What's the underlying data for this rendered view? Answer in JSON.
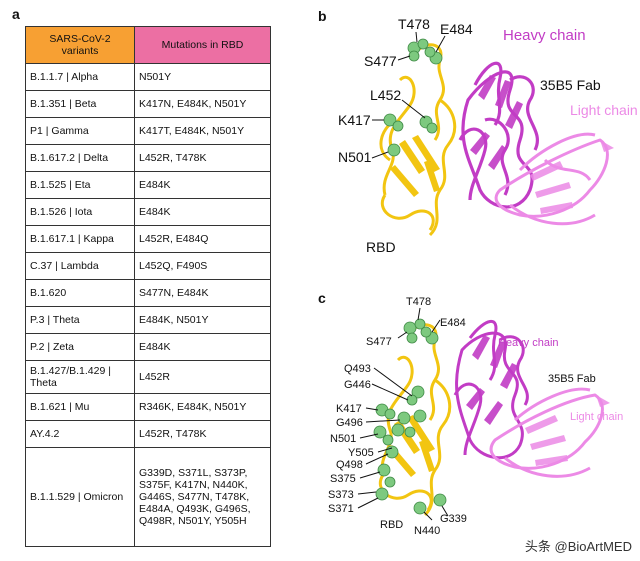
{
  "panels": {
    "a": "a",
    "b": "b",
    "c": "c"
  },
  "table": {
    "header_variant": "SARS-CoV-2 variants",
    "header_mutations": "Mutations in RBD",
    "rows": [
      {
        "variant": "B.1.1.7 | Alpha",
        "mutations": "N501Y"
      },
      {
        "variant": "B.1.351 | Beta",
        "mutations": "K417N, E484K, N501Y"
      },
      {
        "variant": "P1 | Gamma",
        "mutations": "K417T, E484K, N501Y"
      },
      {
        "variant": "B.1.617.2 | Delta",
        "mutations": "L452R, T478K"
      },
      {
        "variant": "B.1.525 | Eta",
        "mutations": "E484K"
      },
      {
        "variant": "B.1.526 | Iota",
        "mutations": "E484K"
      },
      {
        "variant": "B.1.617.1 | Kappa",
        "mutations": "L452R, E484Q"
      },
      {
        "variant": "C.37 | Lambda",
        "mutations": "L452Q, F490S"
      },
      {
        "variant": "B.1.620",
        "mutations": "S477N, E484K"
      },
      {
        "variant": "P.3 | Theta",
        "mutations": "E484K, N501Y"
      },
      {
        "variant": "P.2 | Zeta",
        "mutations": "E484K"
      },
      {
        "variant": "B.1.427/B.1.429 | Theta",
        "mutations": "L452R"
      },
      {
        "variant": "B.1.621 | Mu",
        "mutations": "R346K, E484K, N501Y"
      },
      {
        "variant": "AY.4.2",
        "mutations": "L452R, T478K"
      },
      {
        "variant": "B.1.1.529 | Omicron",
        "mutations": "G339D, S371L, S373P, S375F, K417N, N440K, G446S, S477N, T478K, E484A, Q493K, G496S, Q498R, N501Y, Y505H"
      }
    ]
  },
  "panel_b": {
    "residues": [
      "T478",
      "E484",
      "S477",
      "L452",
      "K417",
      "N501"
    ],
    "heavy_chain": "Heavy chain",
    "light_chain": "Light chain",
    "fab": "35B5 Fab",
    "rbd": "RBD"
  },
  "panel_c": {
    "residues": [
      "T478",
      "E484",
      "S477",
      "Q493",
      "G446",
      "K417",
      "G496",
      "N501",
      "Y505",
      "Q498",
      "S375",
      "S373",
      "S371",
      "RBD",
      "N440",
      "G339"
    ],
    "heavy_chain": "Heavy chain",
    "light_chain": "Light chain",
    "fab": "35B5 Fab"
  },
  "colors": {
    "rbd": "#f2c511",
    "heavy": "#c23cc5",
    "light": "#ec8ae6",
    "residue": "#7dc97f"
  },
  "watermark": "头条 @BioArtMED"
}
